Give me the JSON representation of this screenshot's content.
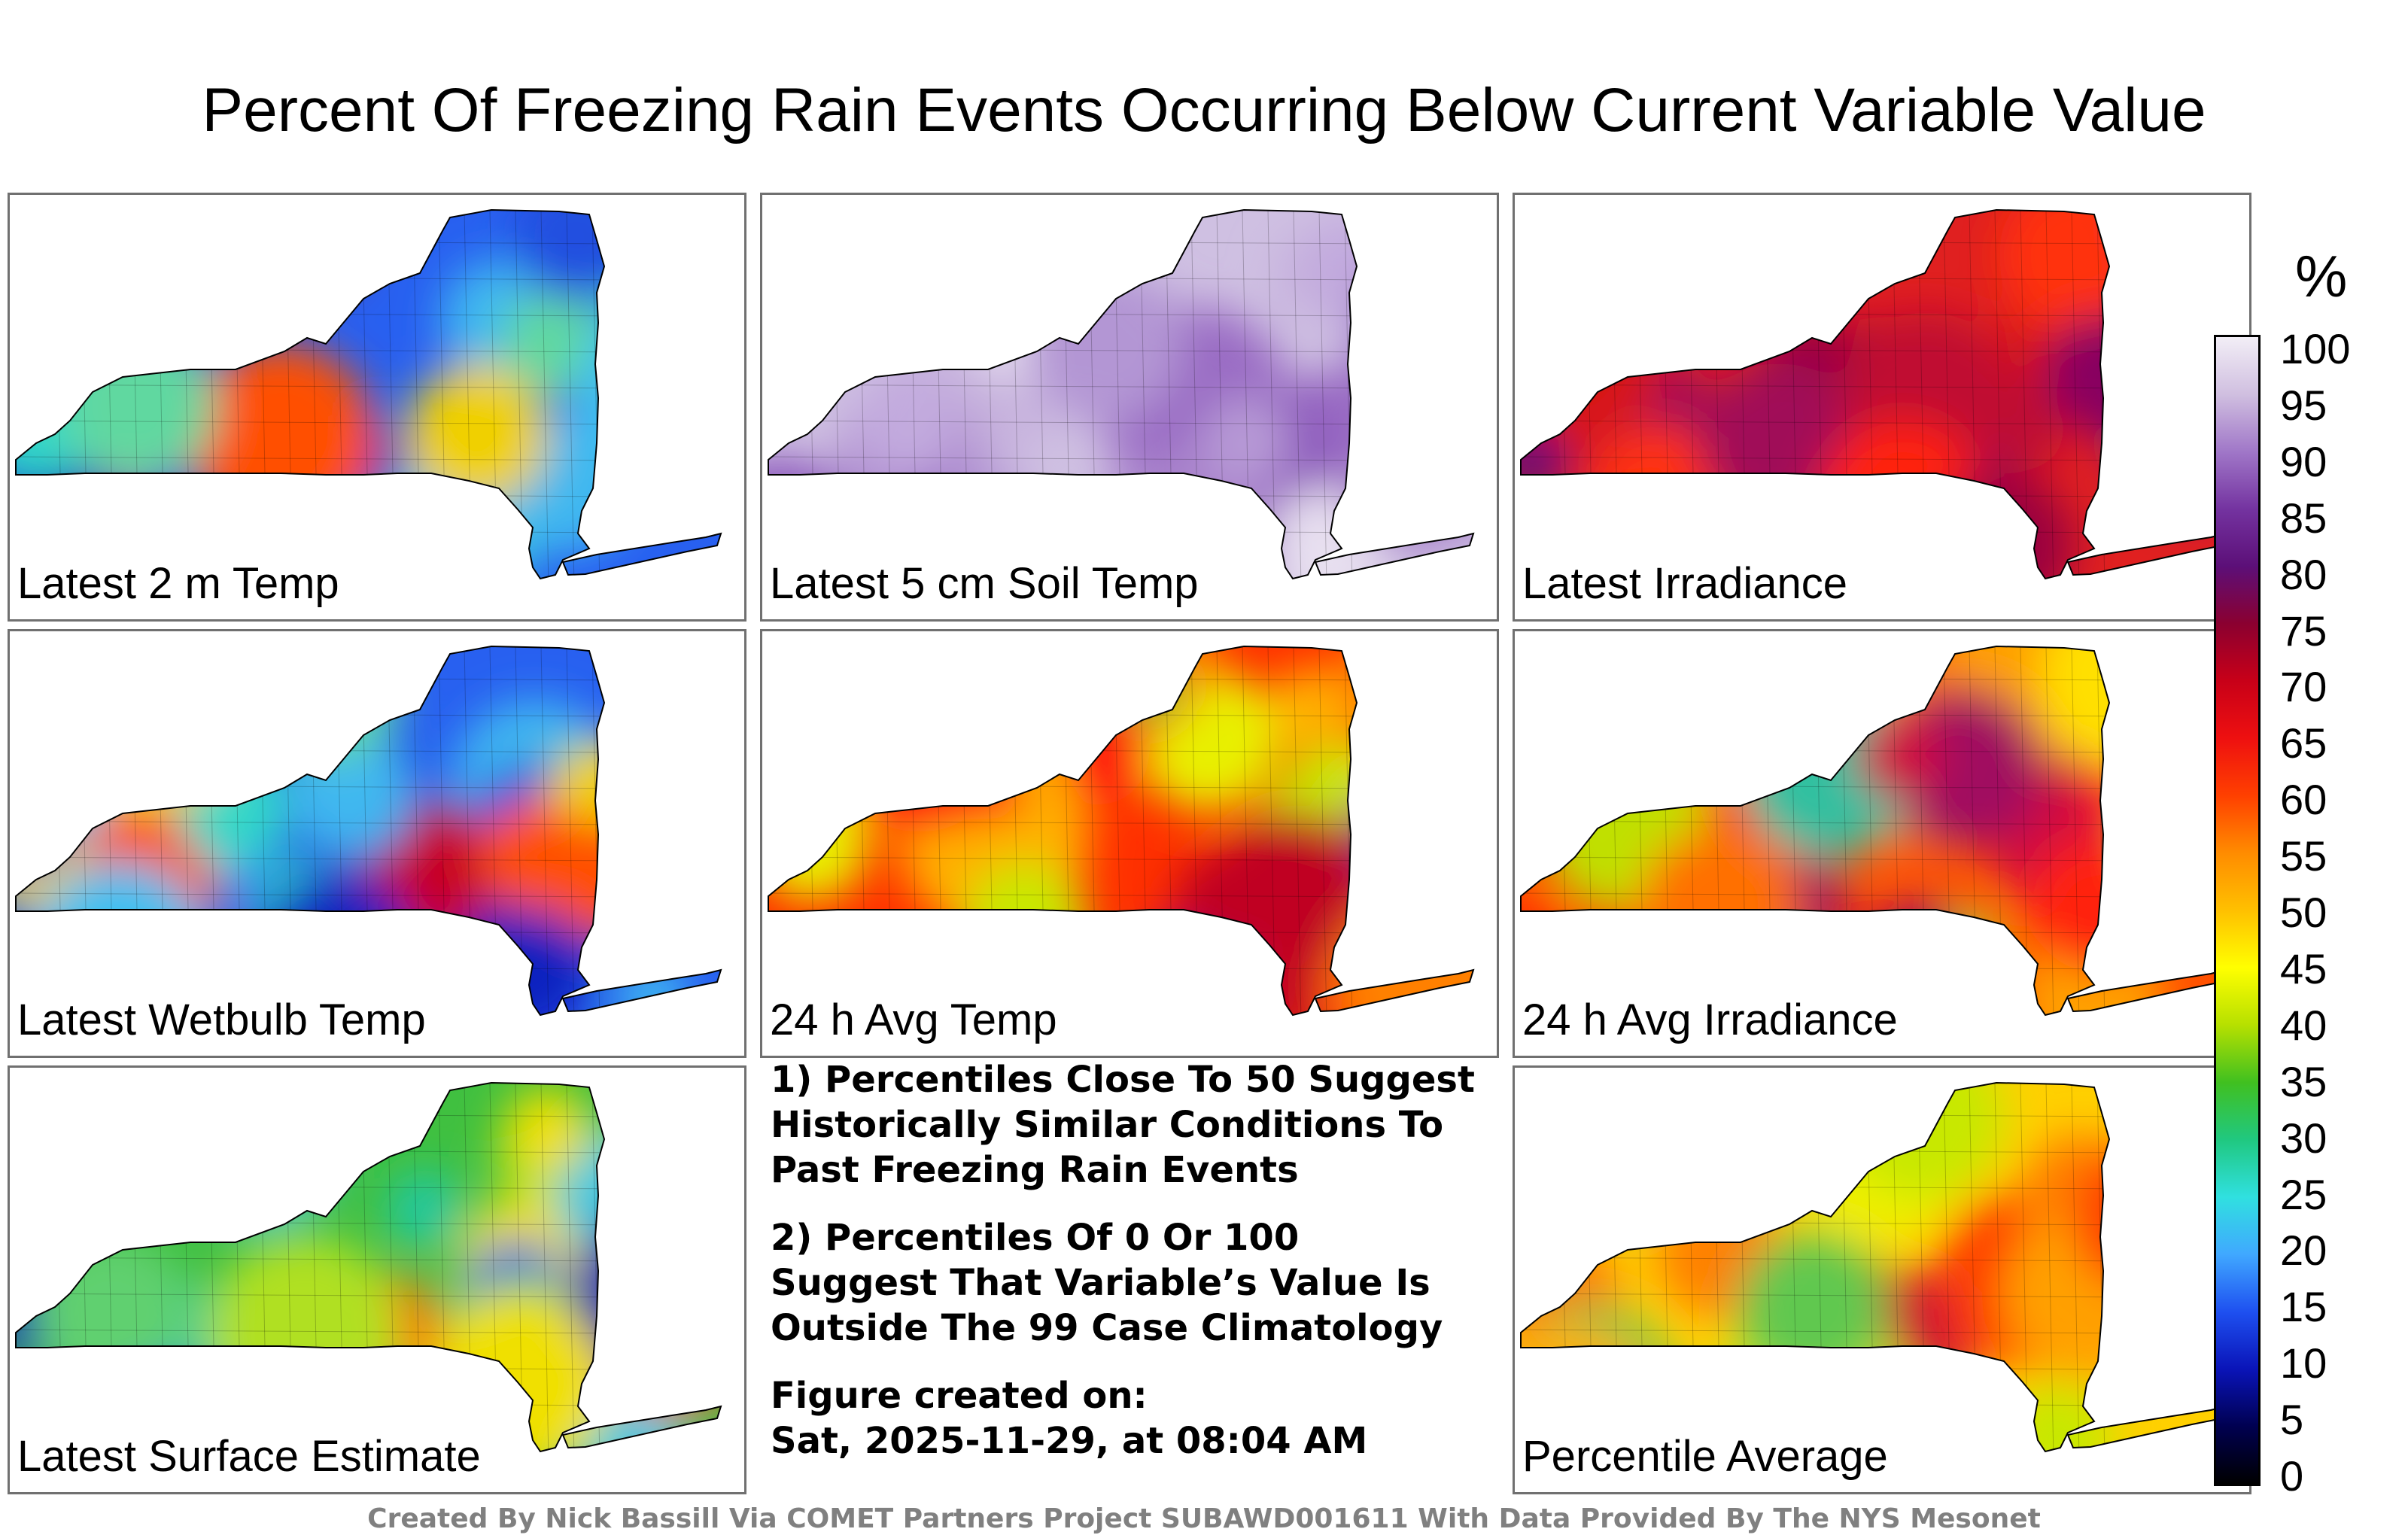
{
  "title": "Percent Of Freezing Rain Events Occurring Below Current Variable Value",
  "colorbar": {
    "unit": "%",
    "ticks": [
      "100",
      "95",
      "90",
      "85",
      "80",
      "75",
      "70",
      "65",
      "60",
      "55",
      "50",
      "45",
      "40",
      "35",
      "30",
      "25",
      "20",
      "15",
      "10",
      "5",
      "0"
    ],
    "colors": [
      "#f2eef6",
      "#d0bfe0",
      "#a077c8",
      "#7433a0",
      "#5c0f78",
      "#8b0030",
      "#c80018",
      "#ee1010",
      "#ff4000",
      "#ff8c00",
      "#ffc000",
      "#ffff00",
      "#b6e000",
      "#40c020",
      "#20c880",
      "#30e0e0",
      "#40a8ff",
      "#1e50f0",
      "#0a14b8",
      "#000050",
      "#000000"
    ]
  },
  "panels": [
    {
      "label": "Latest 2 m Temp",
      "palette": [
        "#2860f0",
        "#40b8f0",
        "#30d8c8",
        "#60d8a0",
        "#2050e0",
        "#0a20c0",
        "#40c0f0",
        "#f0d000",
        "#ff5000",
        "#c80020"
      ]
    },
    {
      "label": "Latest 5 cm Soil Temp",
      "palette": [
        "#cfc0e2",
        "#b79ad6",
        "#c8b4de",
        "#a983cc",
        "#9a6cc4",
        "#b396d4",
        "#8c58bc",
        "#c2aade",
        "#a07ccc",
        "#e8e0f0"
      ]
    },
    {
      "label": "Latest Irradiance",
      "palette": [
        "#e02020",
        "#c01030",
        "#ff2010",
        "#9a0040",
        "#a01058",
        "#70208a",
        "#d81818",
        "#58107a",
        "#880060",
        "#ff3010"
      ]
    },
    {
      "label": "Latest Wetbulb Temp",
      "palette": [
        "#2860f0",
        "#40b8f0",
        "#30d8c8",
        "#60d8a0",
        "#2050e0",
        "#0a20c0",
        "#40c0f0",
        "#f0d000",
        "#ff5000",
        "#c80020"
      ]
    },
    {
      "label": "24 h Avg Temp",
      "palette": [
        "#ff3000",
        "#ffb000",
        "#ffe000",
        "#e8f000",
        "#60c030",
        "#ff8000",
        "#ff1010",
        "#c8e800",
        "#c00020",
        "#7a1890"
      ]
    },
    {
      "label": "24 h Avg Irradiance",
      "palette": [
        "#ff5000",
        "#ffa000",
        "#ff2010",
        "#ffe000",
        "#c0e000",
        "#30c0a0",
        "#ff7000",
        "#d01040",
        "#a01060",
        "#ff3000"
      ]
    },
    {
      "label": "Latest Surface Estimate",
      "palette": [
        "#40c040",
        "#60d070",
        "#20c8a0",
        "#90e040",
        "#2060e0",
        "#0a20b0",
        "#40c8e0",
        "#f0e000",
        "#ff6000",
        "#b0e020"
      ]
    },
    {
      "label": "Percentile Average",
      "palette": [
        "#ffd000",
        "#ffb000",
        "#ffe800",
        "#f0f000",
        "#ff8000",
        "#c8e800",
        "#60c850",
        "#ff4000",
        "#d01030",
        "#ffa000"
      ]
    }
  ],
  "notes": {
    "note1": "1) Percentiles Close To 50 Suggest Historically Similar Conditions To Past Freezing Rain Events",
    "note2": "2) Percentiles Of 0 Or 100 Suggest That Variable’s Value Is Outside The 99 Case Climatology",
    "created_label": "Figure created on:",
    "created_time": "Sat, 2025-11-29, at 08:04 AM"
  },
  "credit": "Created By Nick Bassill Via COMET Partners Project SUBAWD001611 With Data Provided By The NYS Mesonet"
}
